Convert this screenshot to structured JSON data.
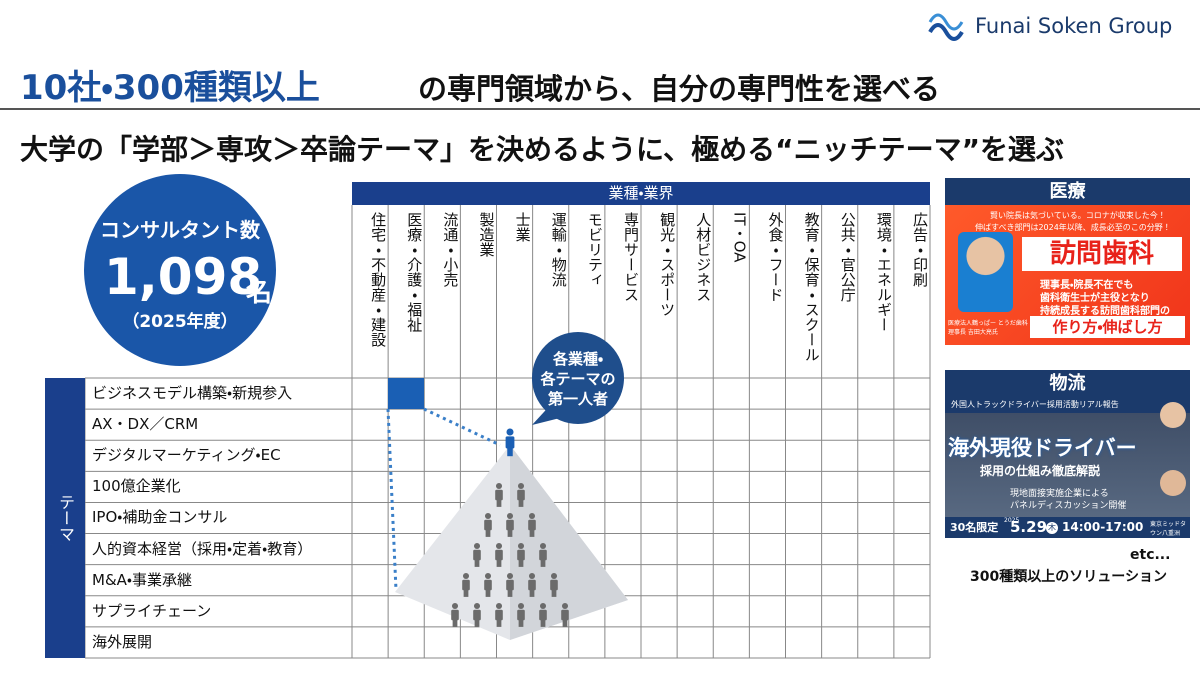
{
  "header": {
    "logo": "Funai Soken Group",
    "title_highlight": "10社・300種類以上",
    "title_rest": "の専門領域から、自分の専門性を選べる",
    "subtitle": "大学の「学部＞専攻＞卒論テーマ」を決めるように、極める“ニッチテーマ”を選ぶ"
  },
  "stats": {
    "label": "コンサルタント数",
    "number": "1,098",
    "unit": "名",
    "year": "（2025年度）"
  },
  "matrix": {
    "column_header": "業種・業界",
    "columns": [
      "住宅・不動産・建設",
      "医療・介護・福祉",
      "流通・小売",
      "製造業",
      "士業",
      "運輸・物流",
      "モビリティ",
      "専門サービス",
      "観光・スポーツ",
      "人材ビジネス",
      "IT・OA",
      "外食・フード",
      "教育・保育・スクール",
      "公共・官公庁",
      "環境・エネルギー",
      "広告・印刷"
    ],
    "row_header": "テーマ",
    "rows": [
      "ビジネスモデル構築・新規参入",
      "AX・DX／CRM",
      "デジタルマーケティング・EC",
      "100億企業化",
      "IPO・補助金コンサル",
      "人的資本経営（採用・定着・教育）",
      "M&A・事業承継",
      "サプライチェーン",
      "海外展開"
    ]
  },
  "callout": {
    "lines": [
      "各業種・",
      "各テーマの",
      "第一人者"
    ]
  },
  "cases": [
    {
      "label": "医療",
      "lead1": "賢い院長は気づいている。コロナが収束した今！",
      "lead2": "伸ばすべき部門は2024年以降、成長必至のこの分野！",
      "headline": "訪問歯科",
      "body": [
        "理事長・院長不在でも",
        "歯科衛生士が主役となり",
        "持続成長する訪問歯科部門の"
      ],
      "tagline": "作り方・伸ばし方",
      "speaker": "医療法人鶴っぱー とうだ歯科 理事長 吉田大亮氏"
    },
    {
      "label": "物流",
      "top": "外国人トラックドライバー採用活動リアル報告",
      "headline": "海外現役ドライバー",
      "sub": "採用の仕組み徹底解説",
      "body": [
        "現地面接実施企業による",
        "パネルディスカッション開催"
      ],
      "limit": "30名限定",
      "year": "2025",
      "date": "5.29",
      "weekday": "木",
      "time": "14:00-17:00",
      "venue": "東京ミッドタウン八重洲"
    }
  ],
  "footer": {
    "etc": "etc...",
    "note": "300種類以上のソリューション"
  }
}
